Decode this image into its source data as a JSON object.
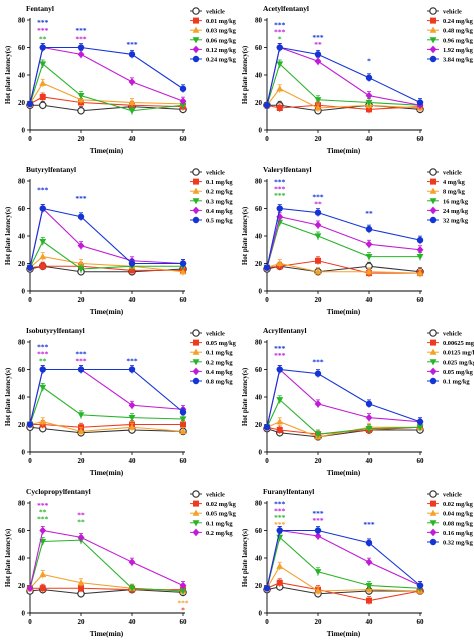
{
  "figure": {
    "ylabel": "Hot plate latency(s)",
    "xlabel": "Time(min)"
  },
  "chart_data": [
    {
      "type": "line",
      "title": "Fentanyl",
      "x": [
        0,
        5,
        20,
        40,
        60
      ],
      "xlim": [
        0,
        60
      ],
      "ylim": [
        0,
        80
      ],
      "xticks": [
        0,
        20,
        40,
        60
      ],
      "yticks": [
        0,
        20,
        40,
        60,
        80
      ],
      "legend_position": "right",
      "series": [
        {
          "name": "vehicle",
          "color": "#333333",
          "marker": "open-circle",
          "values": [
            18,
            18,
            14,
            17,
            15
          ]
        },
        {
          "name": "0.01 mg/kg",
          "color": "#ee3b1f",
          "marker": "square",
          "values": [
            19,
            24,
            20,
            18,
            17
          ]
        },
        {
          "name": "0.03 mg/kg",
          "color": "#f4a029",
          "marker": "triangle-up",
          "values": [
            19,
            34,
            22,
            20,
            19
          ]
        },
        {
          "name": "0.06 mg/kg",
          "color": "#28b428",
          "marker": "triangle-down",
          "values": [
            19,
            48,
            25,
            14,
            18
          ]
        },
        {
          "name": "0.12 mg/kg",
          "color": "#c21ad6",
          "marker": "diamond",
          "values": [
            19,
            60,
            55,
            35,
            21
          ]
        },
        {
          "name": "0.24 mg/kg",
          "color": "#1534d6",
          "marker": "circle",
          "values": [
            19,
            60,
            60,
            55,
            30
          ]
        }
      ],
      "annotations": [
        {
          "x": 5,
          "y": 78,
          "text": "***",
          "color": "#1534d6"
        },
        {
          "x": 5,
          "y": 72,
          "text": "***",
          "color": "#c21ad6"
        },
        {
          "x": 5,
          "y": 66,
          "text": "**",
          "color": "#28b428"
        },
        {
          "x": 20,
          "y": 72,
          "text": "***",
          "color": "#1534d6"
        },
        {
          "x": 20,
          "y": 66,
          "text": "***",
          "color": "#c21ad6"
        },
        {
          "x": 40,
          "y": 62,
          "text": "***",
          "color": "#1534d6"
        }
      ]
    },
    {
      "type": "line",
      "title": "Acetylfentanyl",
      "x": [
        0,
        5,
        20,
        40,
        60
      ],
      "xlim": [
        0,
        60
      ],
      "ylim": [
        0,
        80
      ],
      "xticks": [
        0,
        20,
        40,
        60
      ],
      "yticks": [
        0,
        20,
        40,
        60,
        80
      ],
      "legend_position": "right",
      "series": [
        {
          "name": "vehicle",
          "color": "#333333",
          "marker": "open-circle",
          "values": [
            18,
            18,
            14,
            18,
            15
          ]
        },
        {
          "name": "0.24 mg/kg",
          "color": "#ee3b1f",
          "marker": "square",
          "values": [
            18,
            16,
            18,
            15,
            17
          ]
        },
        {
          "name": "0.48 mg/kg",
          "color": "#f4a029",
          "marker": "triangle-up",
          "values": [
            18,
            30,
            16,
            18,
            16
          ]
        },
        {
          "name": "0.96 mg/kg",
          "color": "#28b428",
          "marker": "triangle-down",
          "values": [
            18,
            48,
            22,
            20,
            18
          ]
        },
        {
          "name": "1.92 mg/kg",
          "color": "#c21ad6",
          "marker": "diamond",
          "values": [
            18,
            60,
            50,
            25,
            18
          ]
        },
        {
          "name": "3.84 mg/kg",
          "color": "#1534d6",
          "marker": "circle",
          "values": [
            18,
            60,
            55,
            38,
            20
          ]
        }
      ],
      "annotations": [
        {
          "x": 5,
          "y": 76,
          "text": "***",
          "color": "#1534d6"
        },
        {
          "x": 5,
          "y": 71,
          "text": "***",
          "color": "#c21ad6"
        },
        {
          "x": 5,
          "y": 66,
          "text": "*",
          "color": "#28b428"
        },
        {
          "x": 20,
          "y": 67,
          "text": "***",
          "color": "#1534d6"
        },
        {
          "x": 20,
          "y": 62,
          "text": "**",
          "color": "#c21ad6"
        },
        {
          "x": 40,
          "y": 50,
          "text": "*",
          "color": "#1534d6"
        }
      ]
    },
    {
      "type": "line",
      "title": "Butyrylfentanyl",
      "x": [
        0,
        5,
        20,
        40,
        60
      ],
      "xlim": [
        0,
        60
      ],
      "ylim": [
        0,
        80
      ],
      "xticks": [
        0,
        20,
        40,
        60
      ],
      "yticks": [
        0,
        20,
        40,
        60,
        80
      ],
      "legend_position": "right",
      "series": [
        {
          "name": "vehicle",
          "color": "#333333",
          "marker": "open-circle",
          "values": [
            16,
            18,
            14,
            14,
            16
          ]
        },
        {
          "name": "0.1 mg/kg",
          "color": "#ee3b1f",
          "marker": "square",
          "values": [
            17,
            18,
            18,
            15,
            15
          ]
        },
        {
          "name": "0.2 mg/kg",
          "color": "#f4a029",
          "marker": "triangle-up",
          "values": [
            17,
            25,
            20,
            18,
            14
          ]
        },
        {
          "name": "0.3 mg/kg",
          "color": "#28b428",
          "marker": "triangle-down",
          "values": [
            17,
            36,
            16,
            18,
            18
          ]
        },
        {
          "name": "0.4 mg/kg",
          "color": "#c21ad6",
          "marker": "diamond",
          "values": [
            17,
            60,
            33,
            22,
            20
          ]
        },
        {
          "name": "0.5 mg/kg",
          "color": "#1534d6",
          "marker": "circle",
          "values": [
            17,
            60,
            54,
            20,
            20
          ]
        }
      ],
      "annotations": [
        {
          "x": 5,
          "y": 73,
          "text": "***",
          "color": "#1534d6"
        },
        {
          "x": 20,
          "y": 67,
          "text": "***",
          "color": "#1534d6"
        }
      ]
    },
    {
      "type": "line",
      "title": "Valerylfentanyl",
      "x": [
        0,
        5,
        20,
        40,
        60
      ],
      "xlim": [
        0,
        60
      ],
      "ylim": [
        0,
        80
      ],
      "xticks": [
        0,
        20,
        40,
        60
      ],
      "yticks": [
        0,
        20,
        40,
        60,
        80
      ],
      "legend_position": "right",
      "series": [
        {
          "name": "vehicle",
          "color": "#333333",
          "marker": "open-circle",
          "values": [
            16,
            18,
            14,
            18,
            14
          ]
        },
        {
          "name": "4 mg/kg",
          "color": "#ee3b1f",
          "marker": "square",
          "values": [
            17,
            18,
            22,
            13,
            13
          ]
        },
        {
          "name": "8 mg/kg",
          "color": "#f4a029",
          "marker": "triangle-up",
          "values": [
            17,
            20,
            14,
            14,
            13
          ]
        },
        {
          "name": "16 mg/kg",
          "color": "#28b428",
          "marker": "triangle-down",
          "values": [
            17,
            50,
            40,
            25,
            25
          ]
        },
        {
          "name": "24 mg/kg",
          "color": "#c21ad6",
          "marker": "diamond",
          "values": [
            17,
            54,
            48,
            34,
            30
          ]
        },
        {
          "name": "32 mg/kg",
          "color": "#1534d6",
          "marker": "circle",
          "values": [
            17,
            60,
            57,
            45,
            37
          ]
        }
      ],
      "annotations": [
        {
          "x": 5,
          "y": 79,
          "text": "***",
          "color": "#1534d6"
        },
        {
          "x": 5,
          "y": 74,
          "text": "***",
          "color": "#c21ad6"
        },
        {
          "x": 5,
          "y": 69,
          "text": "***",
          "color": "#28b428"
        },
        {
          "x": 20,
          "y": 68,
          "text": "***",
          "color": "#1534d6"
        },
        {
          "x": 20,
          "y": 63,
          "text": "**",
          "color": "#c21ad6"
        },
        {
          "x": 40,
          "y": 56,
          "text": "**",
          "color": "#1534d6"
        }
      ]
    },
    {
      "type": "line",
      "title": "Isobutyrylfentanyl",
      "x": [
        0,
        5,
        20,
        40,
        60
      ],
      "xlim": [
        0,
        60
      ],
      "ylim": [
        0,
        80
      ],
      "xticks": [
        0,
        20,
        40,
        60
      ],
      "yticks": [
        0,
        20,
        40,
        60,
        80
      ],
      "legend_position": "right",
      "series": [
        {
          "name": "vehicle",
          "color": "#333333",
          "marker": "open-circle",
          "values": [
            18,
            17,
            14,
            16,
            15
          ]
        },
        {
          "name": "0.05 mg/kg",
          "color": "#ee3b1f",
          "marker": "square",
          "values": [
            20,
            20,
            18,
            20,
            20
          ]
        },
        {
          "name": "0.1 mg/kg",
          "color": "#f4a029",
          "marker": "triangle-up",
          "values": [
            20,
            22,
            15,
            18,
            15
          ]
        },
        {
          "name": "0.2 mg/kg",
          "color": "#28b428",
          "marker": "triangle-down",
          "values": [
            20,
            47,
            27,
            25,
            24
          ]
        },
        {
          "name": "0.4 mg/kg",
          "color": "#c21ad6",
          "marker": "diamond",
          "values": [
            20,
            60,
            60,
            34,
            31
          ]
        },
        {
          "name": "0.8 mg/kg",
          "color": "#1534d6",
          "marker": "circle",
          "values": [
            20,
            60,
            60,
            60,
            29
          ]
        }
      ],
      "annotations": [
        {
          "x": 5,
          "y": 76,
          "text": "***",
          "color": "#1534d6"
        },
        {
          "x": 5,
          "y": 71,
          "text": "***",
          "color": "#c21ad6"
        },
        {
          "x": 5,
          "y": 66,
          "text": "**",
          "color": "#28b428"
        },
        {
          "x": 20,
          "y": 71,
          "text": "***",
          "color": "#1534d6"
        },
        {
          "x": 20,
          "y": 66,
          "text": "***",
          "color": "#c21ad6"
        },
        {
          "x": 40,
          "y": 66,
          "text": "***",
          "color": "#1534d6"
        }
      ]
    },
    {
      "type": "line",
      "title": "Acrylfentanyl",
      "x": [
        0,
        5,
        20,
        40,
        60
      ],
      "xlim": [
        0,
        60
      ],
      "ylim": [
        0,
        80
      ],
      "xticks": [
        0,
        20,
        40,
        60
      ],
      "yticks": [
        0,
        20,
        40,
        60,
        80
      ],
      "legend_position": "right",
      "series": [
        {
          "name": "vehicle",
          "color": "#333333",
          "marker": "open-circle",
          "values": [
            17,
            14,
            11,
            16,
            16
          ]
        },
        {
          "name": "0.00625 mg/kg",
          "color": "#ee3b1f",
          "marker": "square",
          "values": [
            18,
            16,
            13,
            16,
            18
          ]
        },
        {
          "name": "0.0125 mg/kg",
          "color": "#f4a029",
          "marker": "triangle-up",
          "values": [
            18,
            22,
            11,
            18,
            18
          ]
        },
        {
          "name": "0.025 mg/kg",
          "color": "#28b428",
          "marker": "triangle-down",
          "values": [
            18,
            38,
            13,
            17,
            18
          ]
        },
        {
          "name": "0.05 mg/kg",
          "color": "#c21ad6",
          "marker": "diamond",
          "values": [
            18,
            60,
            35,
            25,
            22
          ]
        },
        {
          "name": "0.1 mg/kg",
          "color": "#1534d6",
          "marker": "circle",
          "values": [
            18,
            60,
            57,
            35,
            22
          ]
        }
      ],
      "annotations": [
        {
          "x": 5,
          "y": 75,
          "text": "***",
          "color": "#1534d6"
        },
        {
          "x": 5,
          "y": 70,
          "text": "***",
          "color": "#c21ad6"
        },
        {
          "x": 20,
          "y": 65,
          "text": "***",
          "color": "#1534d6"
        }
      ]
    },
    {
      "type": "line",
      "title": "Cyclopropylfentanyl",
      "x": [
        0,
        5,
        20,
        40,
        60
      ],
      "xlim": [
        0,
        60
      ],
      "ylim": [
        0,
        80
      ],
      "xticks": [
        0,
        20,
        40,
        60
      ],
      "yticks": [
        0,
        20,
        40,
        60,
        80
      ],
      "legend_position": "right",
      "series": [
        {
          "name": "vehicle",
          "color": "#333333",
          "marker": "open-circle",
          "values": [
            16,
            17,
            14,
            17,
            15
          ]
        },
        {
          "name": "0.02 mg/kg",
          "color": "#ee3b1f",
          "marker": "square",
          "values": [
            18,
            18,
            18,
            17,
            17
          ]
        },
        {
          "name": "0.05 mg/kg",
          "color": "#f4a029",
          "marker": "triangle-up",
          "values": [
            18,
            28,
            22,
            18,
            16
          ]
        },
        {
          "name": "0.1 mg/kg",
          "color": "#28b428",
          "marker": "triangle-down",
          "values": [
            18,
            52,
            53,
            18,
            16
          ]
        },
        {
          "name": "0.2 mg/kg",
          "color": "#c21ad6",
          "marker": "diamond",
          "values": [
            18,
            60,
            55,
            37,
            20
          ]
        }
      ],
      "annotations": [
        {
          "x": 5,
          "y": 78,
          "text": "***",
          "color": "#c21ad6"
        },
        {
          "x": 5,
          "y": 73,
          "text": "**",
          "color": "#28b428"
        },
        {
          "x": 5,
          "y": 68,
          "text": "***",
          "color": "#28b428"
        },
        {
          "x": 20,
          "y": 71,
          "text": "**",
          "color": "#c21ad6"
        },
        {
          "x": 20,
          "y": 66,
          "text": "**",
          "color": "#28b428"
        },
        {
          "x": 60,
          "y": 7,
          "text": "***",
          "color": "#f4a029"
        },
        {
          "x": 60,
          "y": 2,
          "text": "*",
          "color": "#ee3b1f"
        }
      ]
    },
    {
      "type": "line",
      "title": "Furanylfentanyl",
      "x": [
        0,
        5,
        20,
        40,
        60
      ],
      "xlim": [
        0,
        60
      ],
      "ylim": [
        0,
        80
      ],
      "xticks": [
        0,
        20,
        40,
        60
      ],
      "yticks": [
        0,
        20,
        40,
        60,
        80
      ],
      "legend_position": "right",
      "series": [
        {
          "name": "vehicle",
          "color": "#333333",
          "marker": "open-circle",
          "values": [
            17,
            19,
            14,
            16,
            16
          ]
        },
        {
          "name": "0.02 mg/kg",
          "color": "#ee3b1f",
          "marker": "square",
          "values": [
            18,
            22,
            17,
            9,
            16
          ]
        },
        {
          "name": "0.04 mg/kg",
          "color": "#f4a029",
          "marker": "triangle-up",
          "values": [
            18,
            34,
            16,
            17,
            16
          ]
        },
        {
          "name": "0.08 mg/kg",
          "color": "#28b428",
          "marker": "triangle-down",
          "values": [
            18,
            55,
            30,
            20,
            18
          ]
        },
        {
          "name": "0.16 mg/kg",
          "color": "#c21ad6",
          "marker": "diamond",
          "values": [
            18,
            60,
            56,
            37,
            20
          ]
        },
        {
          "name": "0.32 mg/kg",
          "color": "#1534d6",
          "marker": "circle",
          "values": [
            18,
            60,
            60,
            51,
            20
          ]
        }
      ],
      "annotations": [
        {
          "x": 5,
          "y": 79,
          "text": "***",
          "color": "#1534d6"
        },
        {
          "x": 5,
          "y": 74,
          "text": "***",
          "color": "#c21ad6"
        },
        {
          "x": 5,
          "y": 69,
          "text": "***",
          "color": "#28b428"
        },
        {
          "x": 5,
          "y": 64,
          "text": "***",
          "color": "#f4a029"
        },
        {
          "x": 20,
          "y": 72,
          "text": "***",
          "color": "#1534d6"
        },
        {
          "x": 20,
          "y": 67,
          "text": "***",
          "color": "#c21ad6"
        },
        {
          "x": 40,
          "y": 64,
          "text": "***",
          "color": "#1534d6"
        }
      ]
    }
  ]
}
